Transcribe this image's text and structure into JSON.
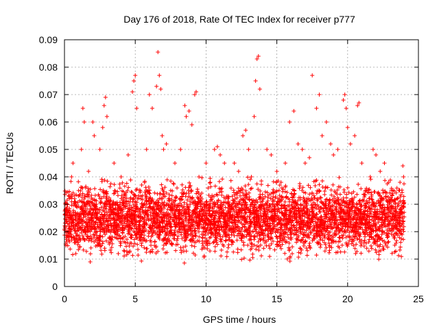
{
  "chart_data": {
    "type": "scatter",
    "title": "Day 176 of 2018, Rate Of TEC Index for receiver p777",
    "xlabel": "GPS time / hours",
    "ylabel": "ROTI / TECUs",
    "xlim": [
      0,
      25
    ],
    "ylim": [
      0,
      0.09
    ],
    "xticks": [
      0,
      5,
      10,
      15,
      20,
      25
    ],
    "xtick_labels": [
      "0",
      "5",
      "10",
      "15",
      "20",
      "25"
    ],
    "yticks": [
      0,
      0.01,
      0.02,
      0.03,
      0.04,
      0.05,
      0.06,
      0.07,
      0.08,
      0.09
    ],
    "ytick_labels": [
      "0",
      "0.01",
      "0.02",
      "0.03",
      "0.04",
      "0.05",
      "0.06",
      "0.07",
      "0.08",
      "0.09"
    ],
    "grid": true,
    "marker": "+",
    "series": [
      {
        "name": "ROTI",
        "color": "#ff0000",
        "x_range": [
          0,
          24
        ],
        "typical_range": [
          0.01,
          0.035
        ],
        "points": [
          [
            0.1,
            0.015
          ],
          [
            0.2,
            0.03
          ],
          [
            0.3,
            0.022
          ],
          [
            0.5,
            0.04
          ],
          [
            0.6,
            0.045
          ],
          [
            0.8,
            0.012
          ],
          [
            1.0,
            0.035
          ],
          [
            1.2,
            0.05
          ],
          [
            1.3,
            0.065
          ],
          [
            1.4,
            0.06
          ],
          [
            1.5,
            0.02
          ],
          [
            1.7,
            0.042
          ],
          [
            2.0,
            0.06
          ],
          [
            2.1,
            0.055
          ],
          [
            2.3,
            0.018
          ],
          [
            2.5,
            0.05
          ],
          [
            2.7,
            0.058
          ],
          [
            2.8,
            0.066
          ],
          [
            2.9,
            0.069
          ],
          [
            3.0,
            0.062
          ],
          [
            3.2,
            0.03
          ],
          [
            3.5,
            0.045
          ],
          [
            3.8,
            0.012
          ],
          [
            4.0,
            0.04
          ],
          [
            4.3,
            0.025
          ],
          [
            4.5,
            0.048
          ],
          [
            4.8,
            0.071
          ],
          [
            4.9,
            0.075
          ],
          [
            5.0,
            0.077
          ],
          [
            5.1,
            0.065
          ],
          [
            5.4,
            0.032
          ],
          [
            5.8,
            0.05
          ],
          [
            6.0,
            0.07
          ],
          [
            6.2,
            0.065
          ],
          [
            6.5,
            0.073
          ],
          [
            6.6,
            0.0855
          ],
          [
            6.7,
            0.077
          ],
          [
            6.8,
            0.072
          ],
          [
            6.9,
            0.055
          ],
          [
            7.0,
            0.05
          ],
          [
            7.2,
            0.052
          ],
          [
            7.5,
            0.035
          ],
          [
            7.8,
            0.045
          ],
          [
            8.0,
            0.02
          ],
          [
            8.2,
            0.05
          ],
          [
            8.5,
            0.066
          ],
          [
            8.6,
            0.062
          ],
          [
            8.8,
            0.064
          ],
          [
            9.0,
            0.059
          ],
          [
            9.2,
            0.07
          ],
          [
            9.3,
            0.071
          ],
          [
            9.5,
            0.04
          ],
          [
            9.8,
            0.02
          ],
          [
            10.0,
            0.045
          ],
          [
            10.3,
            0.038
          ],
          [
            10.6,
            0.05
          ],
          [
            10.8,
            0.051
          ],
          [
            11.0,
            0.048
          ],
          [
            11.3,
            0.045
          ],
          [
            11.6,
            0.03
          ],
          [
            12.0,
            0.045
          ],
          [
            12.3,
            0.042
          ],
          [
            12.6,
            0.055
          ],
          [
            12.8,
            0.057
          ],
          [
            13.0,
            0.05
          ],
          [
            13.2,
            0.04
          ],
          [
            13.4,
            0.062
          ],
          [
            13.5,
            0.075
          ],
          [
            13.6,
            0.083
          ],
          [
            13.7,
            0.084
          ],
          [
            13.8,
            0.072
          ],
          [
            14.0,
            0.03
          ],
          [
            14.3,
            0.05
          ],
          [
            14.6,
            0.048
          ],
          [
            15.0,
            0.042
          ],
          [
            15.3,
            0.038
          ],
          [
            15.6,
            0.045
          ],
          [
            15.9,
            0.06
          ],
          [
            16.2,
            0.064
          ],
          [
            16.5,
            0.052
          ],
          [
            16.8,
            0.05
          ],
          [
            17.0,
            0.045
          ],
          [
            17.3,
            0.047
          ],
          [
            17.5,
            0.077
          ],
          [
            17.8,
            0.065
          ],
          [
            18.0,
            0.07
          ],
          [
            18.2,
            0.055
          ],
          [
            18.5,
            0.06
          ],
          [
            18.8,
            0.052
          ],
          [
            19.0,
            0.048
          ],
          [
            19.3,
            0.05
          ],
          [
            19.7,
            0.068
          ],
          [
            19.8,
            0.07
          ],
          [
            19.9,
            0.065
          ],
          [
            20.0,
            0.058
          ],
          [
            20.2,
            0.052
          ],
          [
            20.5,
            0.055
          ],
          [
            20.7,
            0.066
          ],
          [
            20.8,
            0.067
          ],
          [
            21.0,
            0.045
          ],
          [
            21.3,
            0.035
          ],
          [
            21.6,
            0.04
          ],
          [
            21.8,
            0.05
          ],
          [
            22.0,
            0.048
          ],
          [
            22.3,
            0.042
          ],
          [
            22.6,
            0.045
          ],
          [
            22.9,
            0.038
          ],
          [
            23.2,
            0.035
          ],
          [
            23.5,
            0.032
          ],
          [
            23.7,
            0.038
          ],
          [
            23.9,
            0.044
          ],
          [
            23.95,
            0.04
          ]
        ]
      }
    ]
  }
}
